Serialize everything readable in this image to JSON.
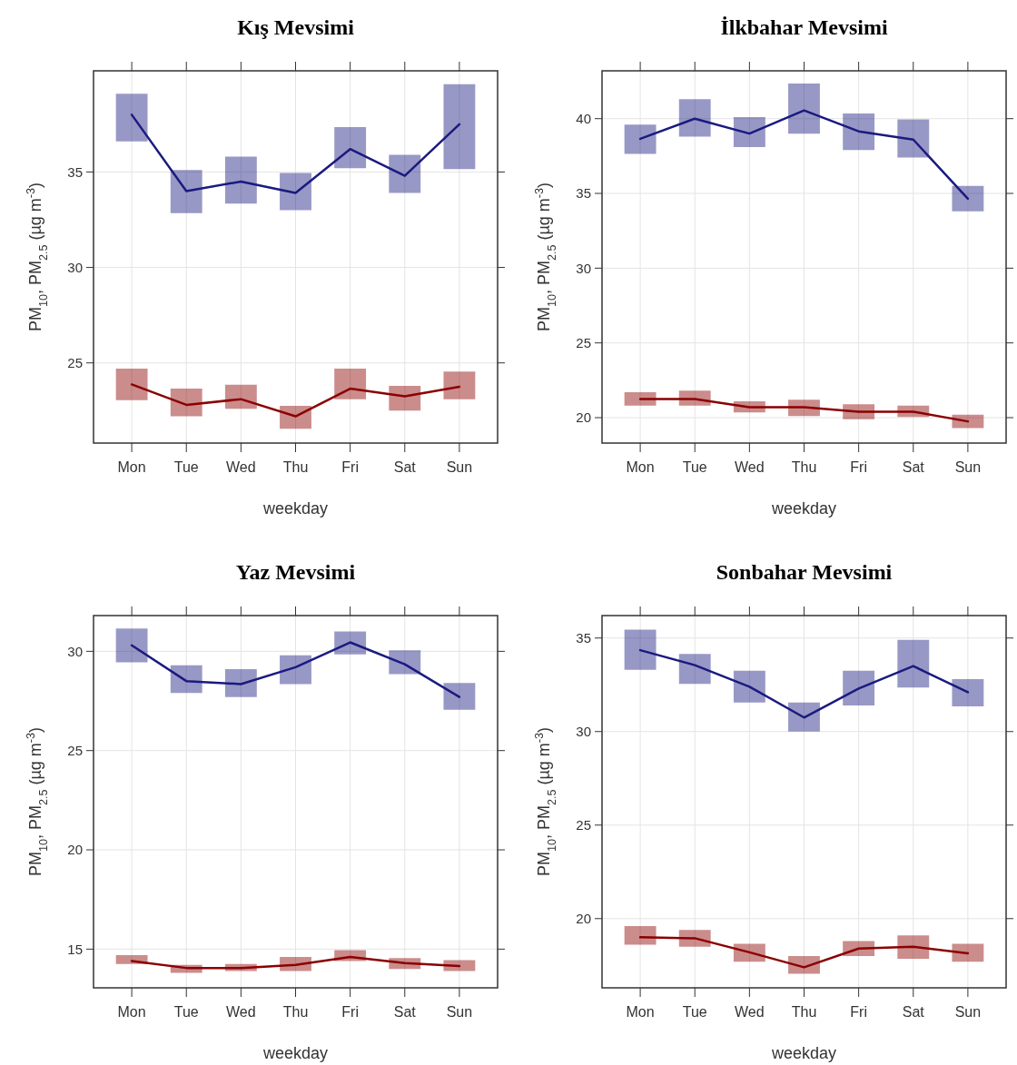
{
  "chart_data": [
    {
      "type": "line",
      "title": "Kış Mevsimi",
      "xlabel": "weekday",
      "ylabel": "PM$_{10}$, PM$_{2.5}$ (µg m$^{-3}$)",
      "categories": [
        "Mon",
        "Tue",
        "Wed",
        "Thu",
        "Fri",
        "Sat",
        "Sun"
      ],
      "ylim": [
        20.8,
        40.3
      ],
      "yticks": [
        25,
        30,
        35
      ],
      "grid": true,
      "series": [
        {
          "color": "#1a1a80",
          "values": [
            38.0,
            34.0,
            34.5,
            33.9,
            36.2,
            34.8,
            37.5
          ],
          "errors": [
            [
              36.6,
              39.1
            ],
            [
              32.85,
              35.1
            ],
            [
              33.35,
              35.8
            ],
            [
              33.0,
              34.95
            ],
            [
              35.2,
              37.35
            ],
            [
              33.9,
              35.9
            ],
            [
              35.15,
              39.6
            ]
          ]
        },
        {
          "color": "#8b0000",
          "values": [
            23.87,
            22.8,
            23.1,
            22.2,
            23.65,
            23.25,
            23.75
          ],
          "errors": [
            [
              23.05,
              24.7
            ],
            [
              22.2,
              23.65
            ],
            [
              22.6,
              23.85
            ],
            [
              21.55,
              22.75
            ],
            [
              23.1,
              24.7
            ],
            [
              22.5,
              23.8
            ],
            [
              23.1,
              24.55
            ]
          ]
        }
      ]
    },
    {
      "type": "line",
      "title": "İlkbahar Mevsimi",
      "xlabel": "weekday",
      "ylabel": "PM$_{10}$, PM$_{2.5}$ (µg m$^{-3}$)",
      "categories": [
        "Mon",
        "Tue",
        "Wed",
        "Thu",
        "Fri",
        "Sat",
        "Sun"
      ],
      "ylim": [
        18.3,
        43.2
      ],
      "yticks": [
        20,
        25,
        30,
        35,
        40
      ],
      "grid": true,
      "series": [
        {
          "color": "#1a1a80",
          "values": [
            38.65,
            40.0,
            39.0,
            40.55,
            39.15,
            38.6,
            34.65
          ],
          "errors": [
            [
              37.65,
              39.6
            ],
            [
              38.8,
              41.3
            ],
            [
              38.1,
              40.1
            ],
            [
              39.0,
              42.35
            ],
            [
              37.9,
              40.35
            ],
            [
              37.4,
              39.95
            ],
            [
              33.8,
              35.5
            ]
          ]
        },
        {
          "color": "#8b0000",
          "values": [
            21.25,
            21.25,
            20.7,
            20.7,
            20.4,
            20.4,
            19.75
          ],
          "errors": [
            [
              20.8,
              21.7
            ],
            [
              20.8,
              21.8
            ],
            [
              20.35,
              21.1
            ],
            [
              20.1,
              21.2
            ],
            [
              19.9,
              20.9
            ],
            [
              20.05,
              20.8
            ],
            [
              19.3,
              20.2
            ]
          ]
        }
      ]
    },
    {
      "type": "line",
      "title": "Yaz Mevsimi",
      "xlabel": "weekday",
      "ylabel": "PM$_{10}$, PM$_{2.5}$ (µg m$^{-3}$)",
      "categories": [
        "Mon",
        "Tue",
        "Wed",
        "Thu",
        "Fri",
        "Sat",
        "Sun"
      ],
      "ylim": [
        13.05,
        31.8
      ],
      "yticks": [
        15,
        20,
        25,
        30
      ],
      "grid": true,
      "series": [
        {
          "color": "#1a1a80",
          "values": [
            30.3,
            28.5,
            28.35,
            29.2,
            30.45,
            29.35,
            27.7
          ],
          "errors": [
            [
              29.45,
              31.15
            ],
            [
              27.9,
              29.3
            ],
            [
              27.7,
              29.1
            ],
            [
              28.35,
              29.8
            ],
            [
              29.85,
              31.0
            ],
            [
              28.85,
              30.05
            ],
            [
              27.05,
              28.4
            ]
          ]
        },
        {
          "color": "#8b0000",
          "values": [
            14.4,
            14.05,
            14.05,
            14.2,
            14.6,
            14.3,
            14.15
          ],
          "errors": [
            [
              14.25,
              14.7
            ],
            [
              13.8,
              14.2
            ],
            [
              13.9,
              14.25
            ],
            [
              13.9,
              14.6
            ],
            [
              14.4,
              14.95
            ],
            [
              14.0,
              14.55
            ],
            [
              13.9,
              14.45
            ]
          ]
        }
      ]
    },
    {
      "type": "line",
      "title": "Sonbahar Mevsimi",
      "xlabel": "weekday",
      "ylabel": "PM$_{10}$, PM$_{2.5}$ (µg m$^{-3}$)",
      "categories": [
        "Mon",
        "Tue",
        "Wed",
        "Thu",
        "Fri",
        "Sat",
        "Sun"
      ],
      "ylim": [
        16.3,
        36.2
      ],
      "yticks": [
        20,
        25,
        30,
        35
      ],
      "grid": true,
      "series": [
        {
          "color": "#1a1a80",
          "values": [
            34.35,
            33.55,
            32.4,
            30.75,
            32.3,
            33.5,
            32.1
          ],
          "errors": [
            [
              33.3,
              35.45
            ],
            [
              32.55,
              34.15
            ],
            [
              31.55,
              33.25
            ],
            [
              30.0,
              31.55
            ],
            [
              31.4,
              33.25
            ],
            [
              32.35,
              34.9
            ],
            [
              31.35,
              32.8
            ]
          ]
        },
        {
          "color": "#8b0000",
          "values": [
            19.0,
            18.95,
            18.2,
            17.4,
            18.4,
            18.5,
            18.15
          ],
          "errors": [
            [
              18.6,
              19.6
            ],
            [
              18.5,
              19.4
            ],
            [
              17.7,
              18.65
            ],
            [
              17.05,
              18.0
            ],
            [
              18.0,
              18.8
            ],
            [
              17.85,
              19.1
            ],
            [
              17.7,
              18.65
            ]
          ]
        }
      ]
    }
  ]
}
